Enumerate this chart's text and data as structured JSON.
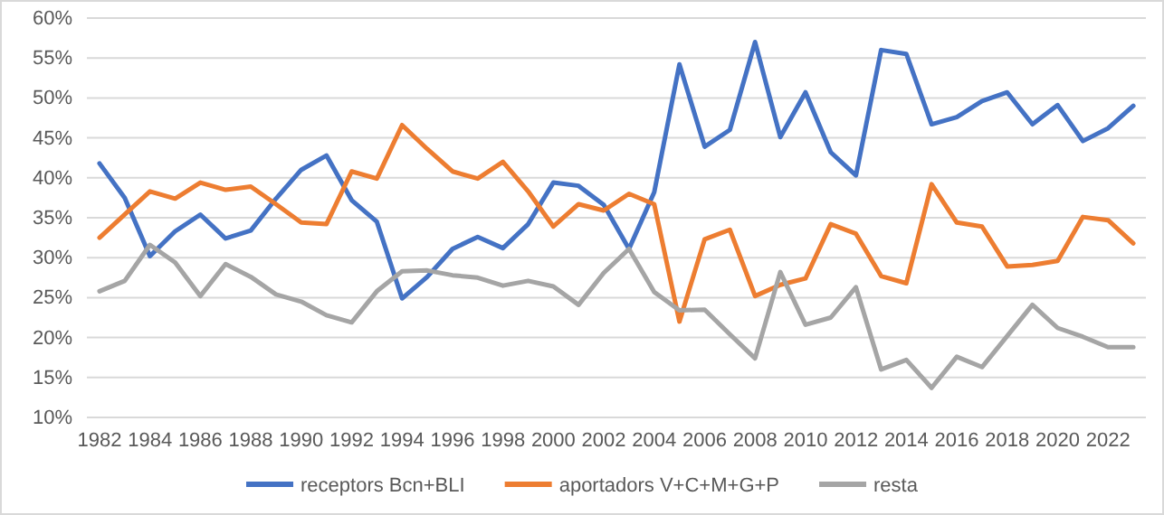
{
  "chart_data": {
    "type": "line",
    "x": [
      1982,
      1983,
      1984,
      1985,
      1986,
      1987,
      1988,
      1989,
      1990,
      1991,
      1992,
      1993,
      1994,
      1995,
      1996,
      1997,
      1998,
      1999,
      2000,
      2001,
      2002,
      2003,
      2004,
      2005,
      2006,
      2007,
      2008,
      2009,
      2010,
      2011,
      2012,
      2013,
      2014,
      2015,
      2016,
      2017,
      2018,
      2019,
      2020,
      2021,
      2022,
      2023
    ],
    "series": [
      {
        "name": "receptors Bcn+BLI",
        "color": "#4472c4",
        "values": [
          41.8,
          37.5,
          30.2,
          33.3,
          35.4,
          32.4,
          33.4,
          37.4,
          41,
          42.8,
          37.2,
          34.5,
          24.9,
          27.6,
          31.1,
          32.6,
          31.2,
          34.2,
          39.4,
          39.0,
          36.6,
          31.1,
          38.2,
          54.2,
          43.9,
          46,
          57,
          45.1,
          50.7,
          43.2,
          40.3,
          56,
          55.5,
          46.7,
          47.6,
          49.6,
          50.7,
          46.7,
          49.1,
          44.6,
          46.2,
          49
        ]
      },
      {
        "name": "aportadors V+C+M+G+P",
        "color": "#ed7d31",
        "values": [
          32.5,
          35.4,
          38.3,
          37.4,
          39.4,
          38.5,
          38.9,
          36.7,
          34.4,
          34.2,
          40.8,
          39.9,
          46.6,
          43.6,
          40.8,
          39.9,
          42.0,
          38.3,
          33.9,
          36.7,
          35.9,
          38.0,
          36.7,
          22.0,
          32.3,
          33.5,
          25.2,
          26.6,
          27.4,
          34.2,
          33.0,
          27.7,
          26.8,
          39.2,
          34.4,
          33.9,
          28.9,
          29.1,
          29.6,
          35.1,
          34.7,
          31.8
        ]
      },
      {
        "name": "resta",
        "color": "#a5a5a5",
        "values": [
          25.8,
          27.1,
          31.6,
          29.4,
          25.2,
          29.2,
          27.6,
          25.4,
          24.5,
          22.8,
          21.9,
          25.8,
          28.3,
          28.4,
          27.8,
          27.5,
          26.5,
          27.1,
          26.4,
          24.1,
          28.1,
          31.1,
          25.7,
          23.4,
          23.5,
          20.4,
          17.4,
          28.2,
          21.6,
          22.5,
          26.3,
          16.0,
          17.2,
          13.7,
          17.6,
          16.3,
          20.2,
          24.1,
          21.2,
          20.1,
          18.8,
          18.8
        ]
      }
    ],
    "xlim": [
      1981.5,
      2023.5
    ],
    "xticks": [
      1982,
      1984,
      1986,
      1988,
      1990,
      1992,
      1994,
      1996,
      1998,
      2000,
      2002,
      2004,
      2006,
      2008,
      2010,
      2012,
      2014,
      2016,
      2018,
      2020,
      2022
    ],
    "ylim": [
      10,
      60
    ],
    "yticks": [
      {
        "value": 10,
        "label": "10%"
      },
      {
        "value": 15,
        "label": "15%"
      },
      {
        "value": 20,
        "label": "20%"
      },
      {
        "value": 25,
        "label": "25%"
      },
      {
        "value": 30,
        "label": "30%"
      },
      {
        "value": 35,
        "label": "35%"
      },
      {
        "value": 40,
        "label": "40%"
      },
      {
        "value": 45,
        "label": "45%"
      },
      {
        "value": 50,
        "label": "50%"
      },
      {
        "value": 55,
        "label": "55%"
      },
      {
        "value": 60,
        "label": "60%"
      }
    ],
    "grid": "y",
    "legend": "bottom",
    "marker": "none",
    "line_style": "solid"
  }
}
